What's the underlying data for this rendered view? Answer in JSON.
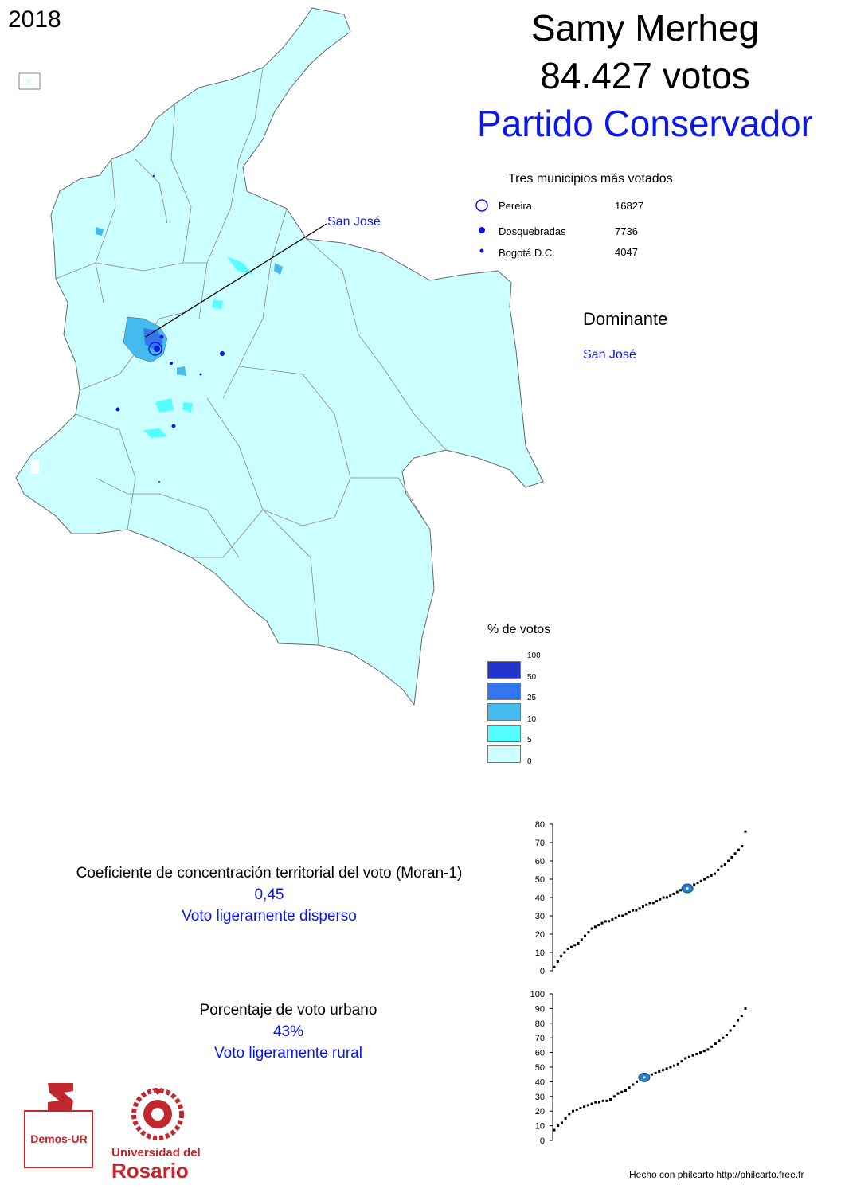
{
  "year": "2018",
  "candidate": "Samy Merheg",
  "votes_text": "84.427 votos",
  "party": "Partido Conservador",
  "top3": {
    "title": "Tres municipios más votados",
    "rows": [
      {
        "name": "Pereira",
        "value": "16827"
      },
      {
        "name": "Dosquebradas",
        "value": "7736"
      },
      {
        "name": "Bogotá D.C.",
        "value": "4047"
      }
    ]
  },
  "dominant": {
    "title": "Dominante",
    "value": "San José"
  },
  "map_callout": "San José",
  "legend": {
    "title": "% de votos",
    "breaks": [
      "100",
      "50",
      "25",
      "10",
      "5",
      "0"
    ],
    "colors": [
      "#2233cc",
      "#3377ee",
      "#44bbee",
      "#55ffff",
      "#ccffff"
    ]
  },
  "moran": {
    "title": "Coeficiente de concentración territorial del voto (Moran-1)",
    "value": "0,45",
    "desc": "Voto ligeramente disperso"
  },
  "urban": {
    "title": "Porcentaje de voto urbano",
    "value": "43%",
    "desc": "Voto ligeramente rural"
  },
  "chart_data": [
    {
      "type": "scatter",
      "title": "",
      "ylim": [
        0,
        80
      ],
      "yticks": [
        "0",
        "10",
        "20",
        "30",
        "40",
        "50",
        "60",
        "70",
        "80"
      ],
      "highlight": 45,
      "values": [
        2,
        5,
        8,
        10,
        12,
        13,
        14,
        15,
        17,
        19,
        21,
        23,
        24,
        25,
        26,
        27,
        27,
        28,
        29,
        30,
        30,
        31,
        32,
        33,
        33,
        34,
        35,
        36,
        37,
        37,
        38,
        39,
        40,
        40,
        41,
        42,
        43,
        44,
        44,
        45,
        46,
        47,
        48,
        49,
        50,
        51,
        52,
        53,
        55,
        57,
        58,
        60,
        62,
        64,
        66,
        68,
        76
      ]
    },
    {
      "type": "scatter",
      "title": "",
      "ylim": [
        0,
        100
      ],
      "yticks": [
        "0",
        "10",
        "20",
        "30",
        "40",
        "50",
        "60",
        "70",
        "80",
        "90",
        "100"
      ],
      "highlight": 43,
      "values": [
        7,
        10,
        12,
        15,
        18,
        20,
        21,
        22,
        23,
        24,
        25,
        26,
        26,
        27,
        27,
        28,
        30,
        32,
        33,
        34,
        36,
        38,
        40,
        42,
        43,
        44,
        45,
        46,
        47,
        48,
        49,
        50,
        51,
        52,
        54,
        56,
        57,
        58,
        59,
        60,
        61,
        62,
        64,
        66,
        68,
        70,
        72,
        75,
        78,
        82,
        85,
        90
      ]
    }
  ],
  "logos": {
    "demos": "Demos-UR",
    "uni_line1": "Universidad del",
    "uni_line2": "Rosario"
  },
  "credit": "Hecho con philcarto http://philcarto.free.fr"
}
